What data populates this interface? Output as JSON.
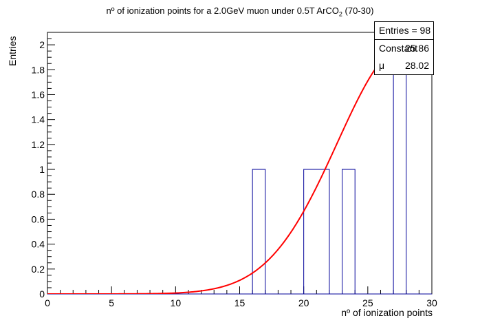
{
  "chart_data": {
    "type": "histogram",
    "title_main": "nº of ionization points for a 2.0GeV muon under 0.5T ArCO",
    "title_sub": "2",
    "title_tail": " (70-30)",
    "xlabel": "nº of ionization points",
    "ylabel": "Entries",
    "xlim": [
      0,
      30
    ],
    "ylim": [
      0,
      2.1
    ],
    "x_ticks": [
      "0",
      "5",
      "10",
      "15",
      "20",
      "25",
      "30"
    ],
    "y_ticks": [
      "0",
      "0.2",
      "0.4",
      "0.6",
      "0.8",
      "1",
      "1.2",
      "1.4",
      "1.6",
      "1.8",
      "2"
    ],
    "bins": [
      {
        "x0": 16,
        "x1": 17,
        "value": 1
      },
      {
        "x0": 20,
        "x1": 22,
        "value": 1
      },
      {
        "x0": 23,
        "x1": 24,
        "value": 1
      },
      {
        "x0": 27,
        "x1": 28,
        "value": 2
      }
    ],
    "fit": {
      "type": "gaussian",
      "color": "#ff0000",
      "constant": 25.86,
      "mean": 28.02,
      "sigma": 5.4
    },
    "histogram_color": "#000099"
  },
  "stats": {
    "entries_label": "Entries = 98",
    "constant_label": "Constant",
    "constant_value": "25.86",
    "mu_label": "μ",
    "mu_value": "28.02"
  }
}
